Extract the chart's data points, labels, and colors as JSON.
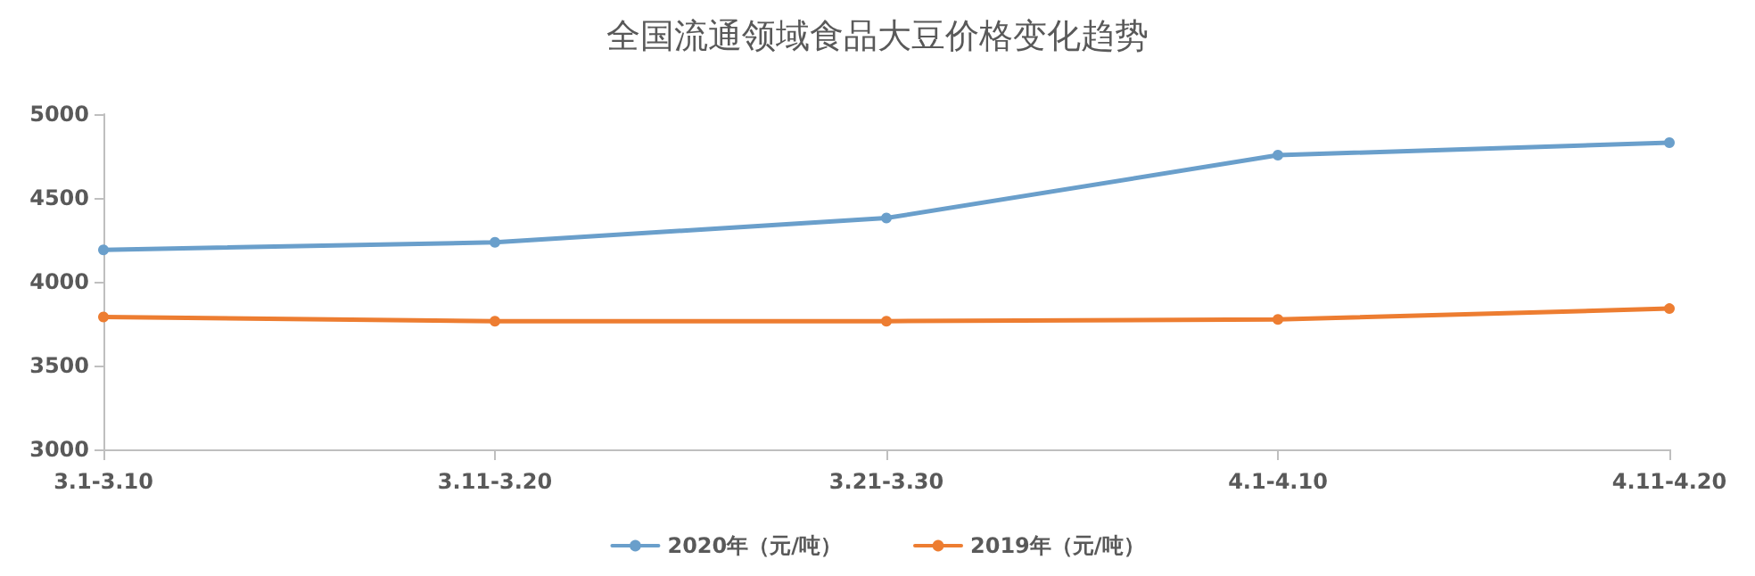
{
  "chart_data": {
    "type": "line",
    "title": "全国流通领域食品大豆价格变化趋势",
    "categories": [
      "3.1-3.10",
      "3.11-3.20",
      "3.21-3.30",
      "4.1-4.10",
      "4.11-4.20"
    ],
    "series": [
      {
        "name": "2020年（元/吨）",
        "color": "#6a9fcb",
        "values": [
          4190,
          4235,
          4380,
          4755,
          4830
        ]
      },
      {
        "name": "2019年（元/吨）",
        "color": "#ed7d31",
        "values": [
          3790,
          3765,
          3765,
          3775,
          3840
        ]
      }
    ],
    "ylim": [
      3000,
      5000
    ],
    "yticks": [
      3000,
      3500,
      4000,
      4500,
      5000
    ],
    "grid": false,
    "legend": "bottom",
    "marker": "circle",
    "line_style": "solid"
  }
}
